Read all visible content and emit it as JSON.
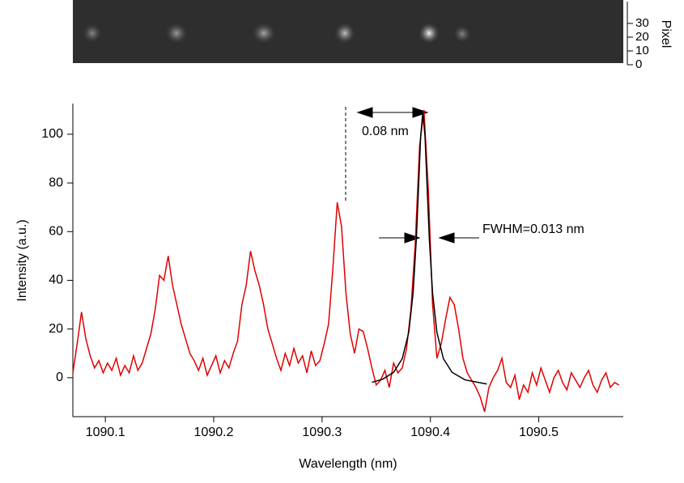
{
  "chart_data": [
    {
      "type": "image",
      "ylabel": "Pixel",
      "ylim": [
        0,
        47
      ],
      "yticks": [
        0,
        10,
        20,
        30
      ]
    },
    {
      "type": "line",
      "xlabel": "Wavelength (nm)",
      "ylabel": "Intensity (a.u.)",
      "xlim": [
        1090.07,
        1090.578
      ],
      "ylim": [
        -16,
        112.6
      ],
      "xticks": [
        1090.1,
        1090.2,
        1090.3,
        1090.4,
        1090.5
      ],
      "yticks": [
        0,
        20,
        40,
        60,
        80,
        100
      ],
      "annotations": [
        "0.08 nm",
        "FWHM=0.013 nm"
      ],
      "series": [
        {
          "color": "#e00000",
          "x": [
            1090.07,
            1090.074,
            1090.078,
            1090.082,
            1090.086,
            1090.09,
            1090.094,
            1090.098,
            1090.102,
            1090.106,
            1090.11,
            1090.114,
            1090.118,
            1090.122,
            1090.126,
            1090.13,
            1090.134,
            1090.138,
            1090.142,
            1090.146,
            1090.15,
            1090.154,
            1090.158,
            1090.162,
            1090.166,
            1090.17,
            1090.174,
            1090.178,
            1090.182,
            1090.186,
            1090.19,
            1090.194,
            1090.198,
            1090.202,
            1090.206,
            1090.21,
            1090.214,
            1090.218,
            1090.222,
            1090.226,
            1090.23,
            1090.234,
            1090.238,
            1090.242,
            1090.246,
            1090.25,
            1090.254,
            1090.258,
            1090.262,
            1090.266,
            1090.27,
            1090.274,
            1090.278,
            1090.282,
            1090.286,
            1090.29,
            1090.294,
            1090.298,
            1090.302,
            1090.306,
            1090.31,
            1090.314,
            1090.318,
            1090.322,
            1090.326,
            1090.33,
            1090.334,
            1090.338,
            1090.342,
            1090.346,
            1090.35,
            1090.354,
            1090.358,
            1090.362,
            1090.366,
            1090.37,
            1090.374,
            1090.378,
            1090.382,
            1090.386,
            1090.39,
            1090.394,
            1090.398,
            1090.402,
            1090.406,
            1090.41,
            1090.414,
            1090.418,
            1090.422,
            1090.426,
            1090.43,
            1090.434,
            1090.438,
            1090.442,
            1090.446,
            1090.45,
            1090.454,
            1090.458,
            1090.462,
            1090.466,
            1090.47,
            1090.474,
            1090.478,
            1090.482,
            1090.486,
            1090.49,
            1090.494,
            1090.498,
            1090.502,
            1090.506,
            1090.51,
            1090.514,
            1090.518,
            1090.522,
            1090.526,
            1090.53,
            1090.534,
            1090.538,
            1090.542,
            1090.546,
            1090.55,
            1090.554,
            1090.558,
            1090.562,
            1090.566,
            1090.57,
            1090.574
          ],
          "values": [
            2,
            14,
            27,
            16,
            9,
            4,
            7,
            2,
            6,
            3,
            8,
            1,
            5,
            2,
            9,
            3,
            6,
            12,
            18,
            28,
            42,
            40,
            50,
            38,
            30,
            22,
            16,
            10,
            7,
            3,
            8,
            1,
            5,
            9,
            2,
            7,
            4,
            10,
            15,
            30,
            38,
            52,
            44,
            38,
            30,
            20,
            14,
            8,
            3,
            10,
            5,
            12,
            6,
            9,
            2,
            11,
            5,
            7,
            14,
            22,
            45,
            72,
            62,
            35,
            18,
            10,
            20,
            19,
            12,
            4,
            -3,
            -1,
            3,
            -4,
            6,
            2,
            4,
            12,
            28,
            55,
            95,
            110,
            78,
            30,
            8,
            14,
            24,
            33,
            30,
            20,
            8,
            2,
            -1,
            -4,
            -8,
            -14,
            -4,
            0,
            3,
            8,
            -2,
            -4,
            1,
            -9,
            -3,
            -6,
            2,
            -3,
            4,
            -1,
            -6,
            0,
            3,
            -2,
            -5,
            2,
            -1,
            -4,
            0,
            3,
            -3,
            -6,
            -1,
            2,
            -4,
            -2,
            -3
          ]
        },
        {
          "color": "#000000",
          "x": [
            1090.346,
            1090.356,
            1090.366,
            1090.374,
            1090.38,
            1090.384,
            1090.387,
            1090.389,
            1090.391,
            1090.393,
            1090.395,
            1090.397,
            1090.399,
            1090.402,
            1090.406,
            1090.412,
            1090.42,
            1090.432,
            1090.452
          ],
          "values": [
            -1.9,
            -0.6,
            2.2,
            7.8,
            18.6,
            34.7,
            57,
            77.9,
            99.2,
            109,
            99.2,
            77.9,
            57,
            34.7,
            18.6,
            7.8,
            2.2,
            -0.9,
            -2.6
          ]
        }
      ]
    }
  ]
}
